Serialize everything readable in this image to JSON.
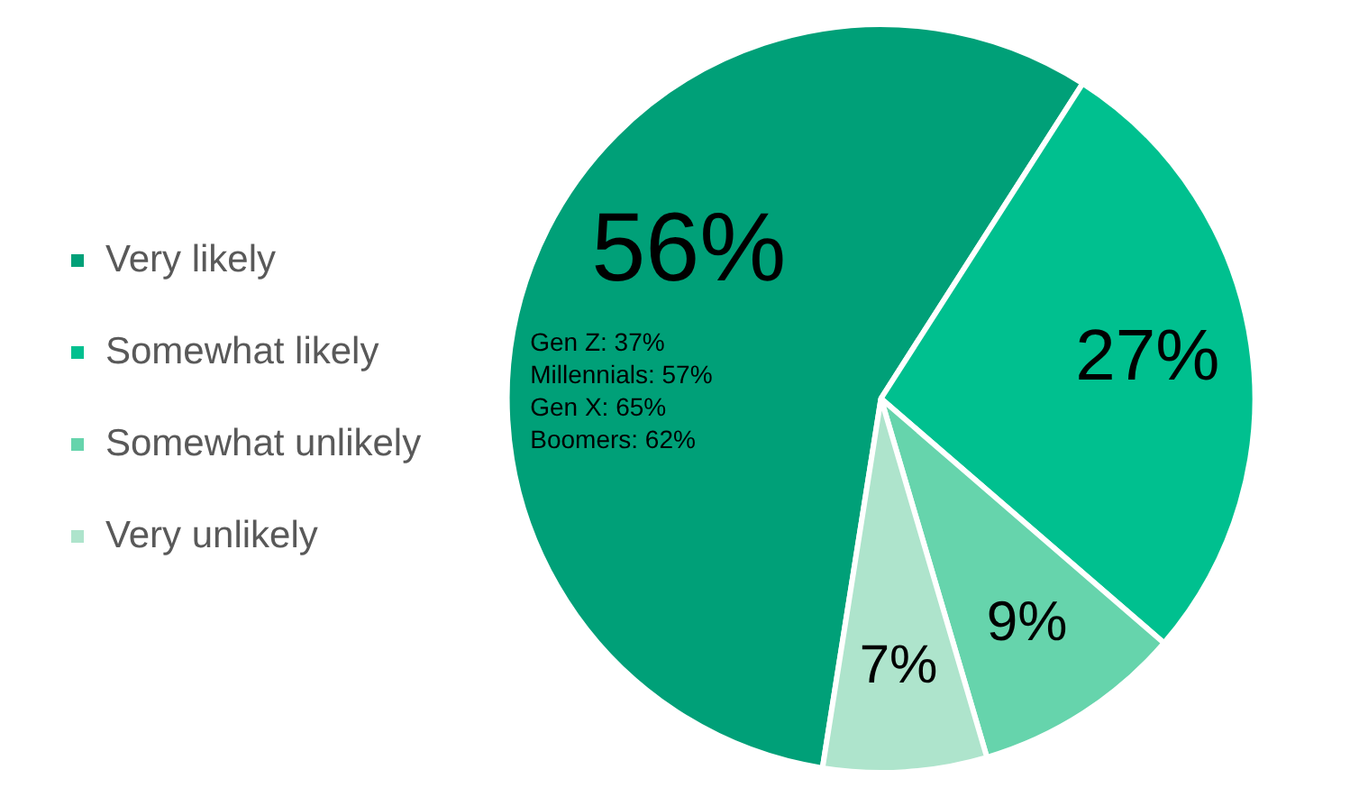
{
  "chart_data": {
    "type": "pie",
    "categories": [
      "Very likely",
      "Somewhat likely",
      "Somewhat unlikely",
      "Very unlikely"
    ],
    "values": [
      56,
      27,
      9,
      7
    ],
    "colors": [
      "#00a078",
      "#00c08f",
      "#66d4ac",
      "#aee4cc"
    ],
    "value_labels": [
      "56%",
      "27%",
      "9%",
      "7%"
    ],
    "annotations": [
      "Gen Z: 37%",
      "Millennials: 57%",
      "Gen X: 65%",
      "Boomers: 62%"
    ],
    "legend": "left"
  }
}
